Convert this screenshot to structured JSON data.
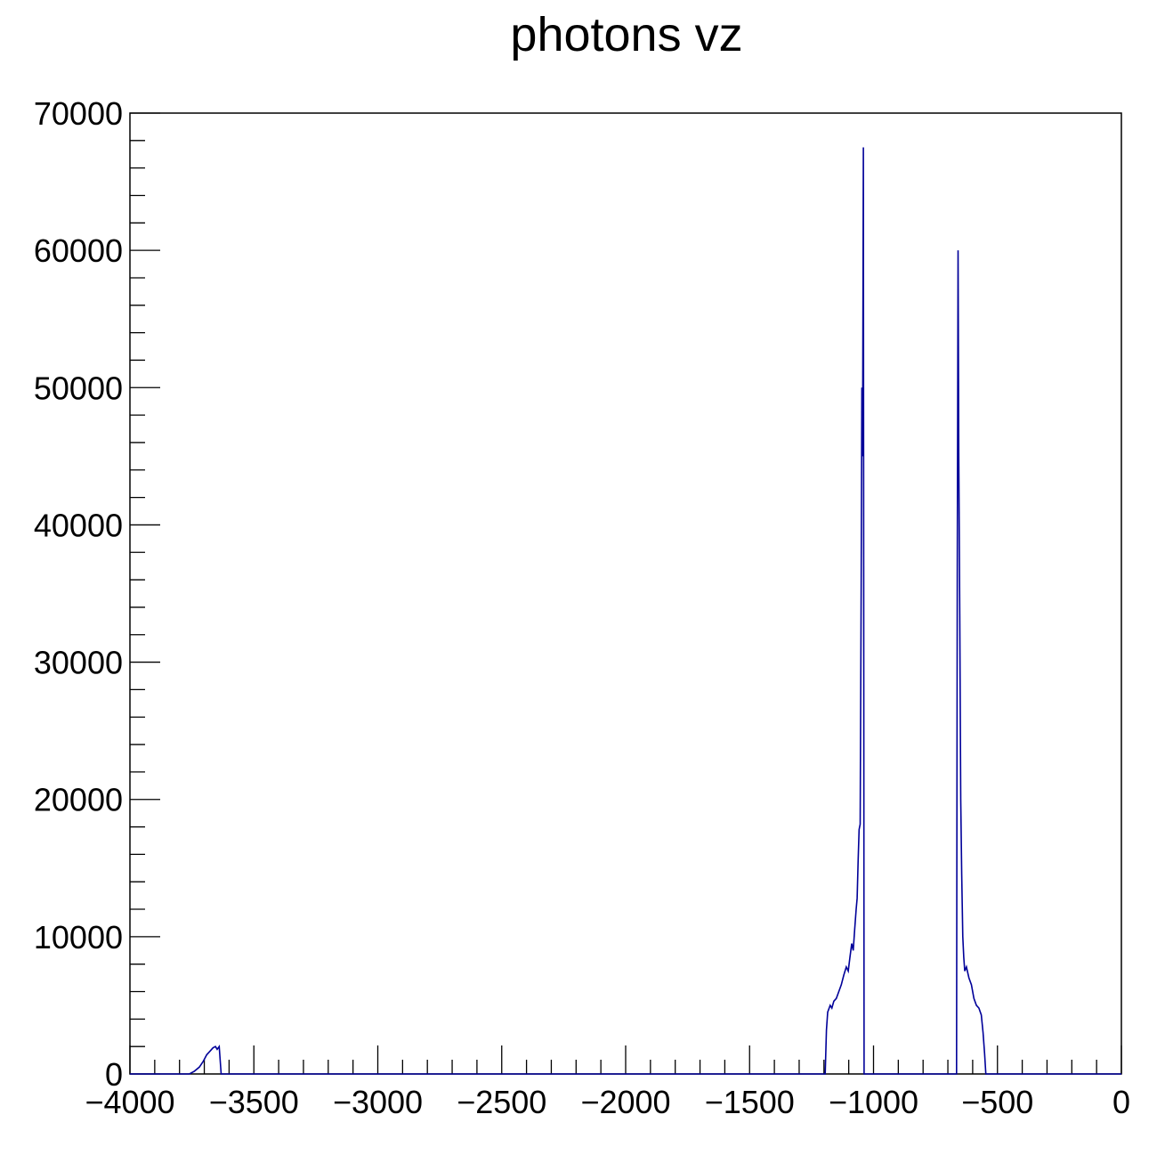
{
  "chart_data": {
    "type": "histogram",
    "title": "photons vz",
    "xlabel": "",
    "ylabel": "",
    "xlim": [
      -4000,
      0
    ],
    "ylim": [
      0,
      70000
    ],
    "x_ticks": [
      -4000,
      -3500,
      -3000,
      -2500,
      -2000,
      -1500,
      -1000,
      -500,
      0
    ],
    "x_tick_labels": [
      "−4000",
      "−3500",
      "−3000",
      "−2500",
      "−2000",
      "−1500",
      "−1000",
      "−500",
      "0"
    ],
    "y_ticks": [
      0,
      10000,
      20000,
      30000,
      40000,
      50000,
      60000,
      70000
    ],
    "y_tick_labels": [
      "0",
      "10000",
      "20000",
      "30000",
      "40000",
      "50000",
      "60000",
      "70000"
    ],
    "grid": false,
    "legend": "none",
    "line_color": "#000099",
    "series": [
      {
        "points": [
          [
            -3760,
            0
          ],
          [
            -3740,
            200
          ],
          [
            -3720,
            500
          ],
          [
            -3705,
            900
          ],
          [
            -3690,
            1400
          ],
          [
            -3675,
            1700
          ],
          [
            -3665,
            1900
          ],
          [
            -3655,
            2000
          ],
          [
            -3648,
            1800
          ],
          [
            -3640,
            2000
          ],
          [
            -3632,
            0
          ],
          [
            -1195,
            0
          ],
          [
            -1190,
            3200
          ],
          [
            -1185,
            4500
          ],
          [
            -1175,
            5000
          ],
          [
            -1168,
            4800
          ],
          [
            -1160,
            5300
          ],
          [
            -1150,
            5500
          ],
          [
            -1140,
            6000
          ],
          [
            -1130,
            6500
          ],
          [
            -1120,
            7200
          ],
          [
            -1110,
            7800
          ],
          [
            -1102,
            7500
          ],
          [
            -1095,
            8500
          ],
          [
            -1088,
            9500
          ],
          [
            -1082,
            9000
          ],
          [
            -1076,
            10500
          ],
          [
            -1070,
            12000
          ],
          [
            -1066,
            12800
          ],
          [
            -1062,
            15500
          ],
          [
            -1058,
            17800
          ],
          [
            -1054,
            18200
          ],
          [
            -1050,
            35000
          ],
          [
            -1047,
            50000
          ],
          [
            -1044,
            45000
          ],
          [
            -1041,
            67500
          ],
          [
            -1038,
            0
          ],
          [
            -665,
            0
          ],
          [
            -662,
            36500
          ],
          [
            -659,
            60000
          ],
          [
            -656,
            45000
          ],
          [
            -652,
            33500
          ],
          [
            -648,
            20000
          ],
          [
            -644,
            14500
          ],
          [
            -640,
            10000
          ],
          [
            -636,
            8500
          ],
          [
            -632,
            7500
          ],
          [
            -625,
            7800
          ],
          [
            -615,
            7000
          ],
          [
            -605,
            6500
          ],
          [
            -595,
            5500
          ],
          [
            -585,
            5000
          ],
          [
            -575,
            4800
          ],
          [
            -565,
            4300
          ],
          [
            -558,
            3000
          ],
          [
            -552,
            1500
          ],
          [
            -547,
            0
          ]
        ]
      }
    ]
  }
}
